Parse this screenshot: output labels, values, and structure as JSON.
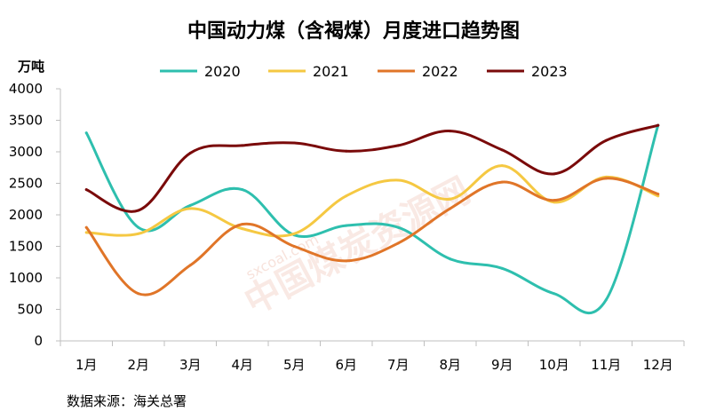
{
  "chart_data": {
    "type": "line",
    "title": "中国动力煤（含褐煤）月度进口趋势图",
    "ylabel": "万吨",
    "ylim": [
      0,
      4000
    ],
    "yticks": [
      0,
      500,
      1000,
      1500,
      2000,
      2500,
      3000,
      3500,
      4000
    ],
    "categories": [
      "1月",
      "2月",
      "3月",
      "4月",
      "5月",
      "6月",
      "7月",
      "8月",
      "9月",
      "10月",
      "11月",
      "12月"
    ],
    "legend_position": "top",
    "grid": false,
    "series": [
      {
        "name": "2020",
        "color": "#2ebfae",
        "values": [
          3300,
          1800,
          2150,
          2400,
          1680,
          1830,
          1800,
          1300,
          1150,
          750,
          650,
          3420
        ]
      },
      {
        "name": "2021",
        "color": "#f5c842",
        "values": [
          1720,
          1700,
          2100,
          1780,
          1700,
          2300,
          2550,
          2250,
          2780,
          2200,
          2600,
          2300
        ]
      },
      {
        "name": "2022",
        "color": "#e07528",
        "values": [
          1800,
          750,
          1200,
          1850,
          1500,
          1270,
          1550,
          2100,
          2520,
          2230,
          2580,
          2330
        ]
      },
      {
        "name": "2023",
        "color": "#7a0a0a",
        "values": [
          2400,
          2070,
          2980,
          3100,
          3140,
          3010,
          3100,
          3330,
          3030,
          2650,
          3180,
          3420
        ]
      }
    ],
    "source": "数据来源：海关总署"
  },
  "watermark": {
    "main": "中国煤炭资源网",
    "url": "sxcoal.com"
  }
}
